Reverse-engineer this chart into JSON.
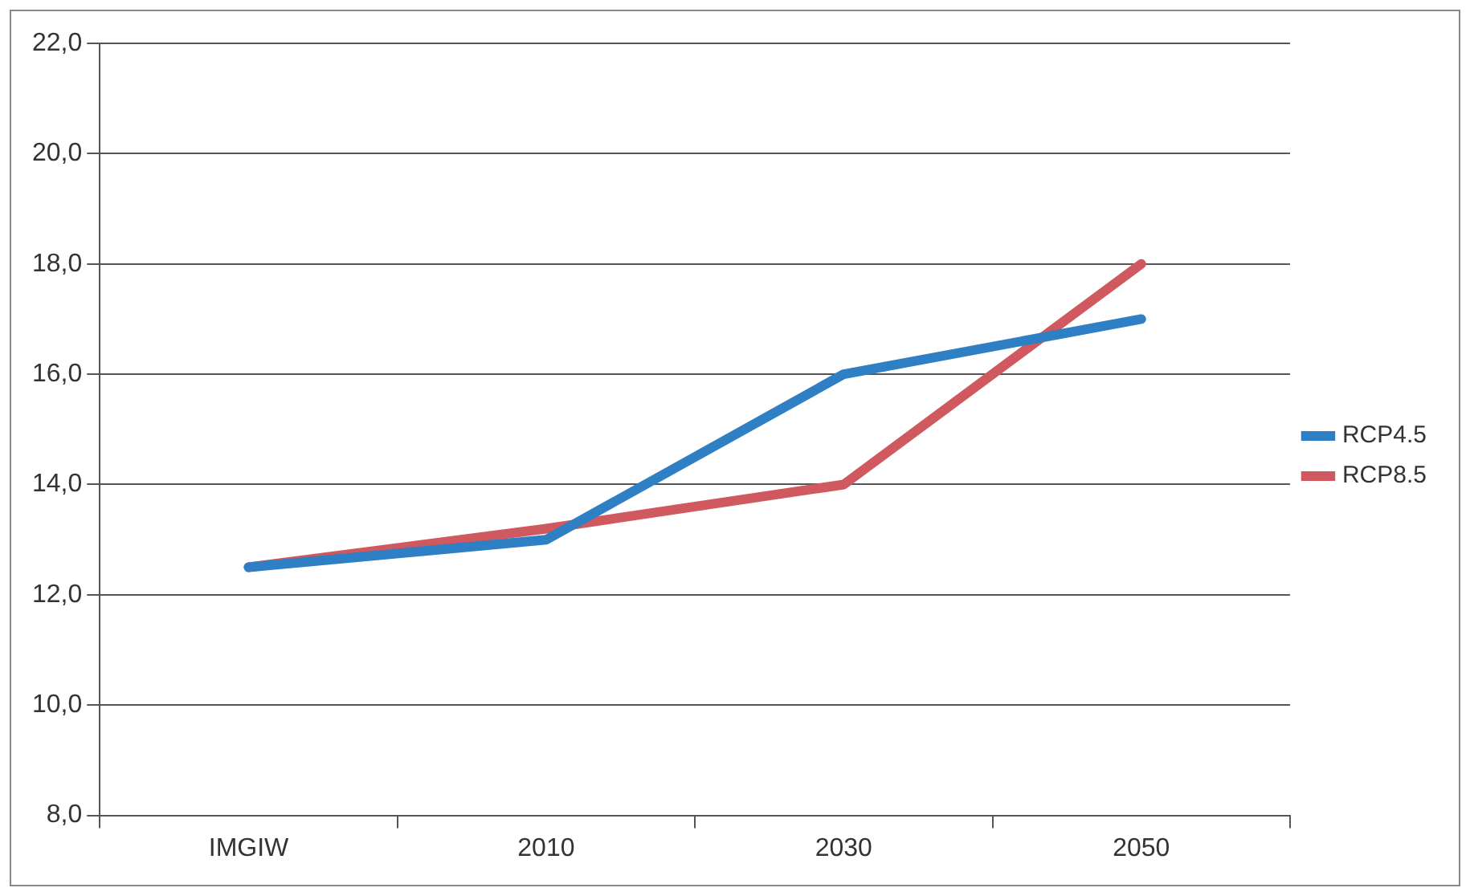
{
  "chart_data": {
    "type": "line",
    "categories": [
      "IMGIW",
      "2010",
      "2030",
      "2050"
    ],
    "series": [
      {
        "name": "RCP4.5",
        "color": "#2e7fc4",
        "values": [
          12.5,
          13.0,
          16.0,
          17.0
        ]
      },
      {
        "name": "RCP8.5",
        "color": "#d0595f",
        "values": [
          12.5,
          13.2,
          14.0,
          18.0
        ]
      }
    ],
    "ylim": [
      8,
      22
    ],
    "yticks": [
      {
        "value": 8,
        "label": "8,0"
      },
      {
        "value": 10,
        "label": "10,0"
      },
      {
        "value": 12,
        "label": "12,0"
      },
      {
        "value": 14,
        "label": "14,0"
      },
      {
        "value": 16,
        "label": "16,0"
      },
      {
        "value": 18,
        "label": "18,0"
      },
      {
        "value": 20,
        "label": "20,0"
      },
      {
        "value": 22,
        "label": "22,0"
      }
    ],
    "grid": "y",
    "legend": "right",
    "marker": "none",
    "line_style": "solid"
  }
}
